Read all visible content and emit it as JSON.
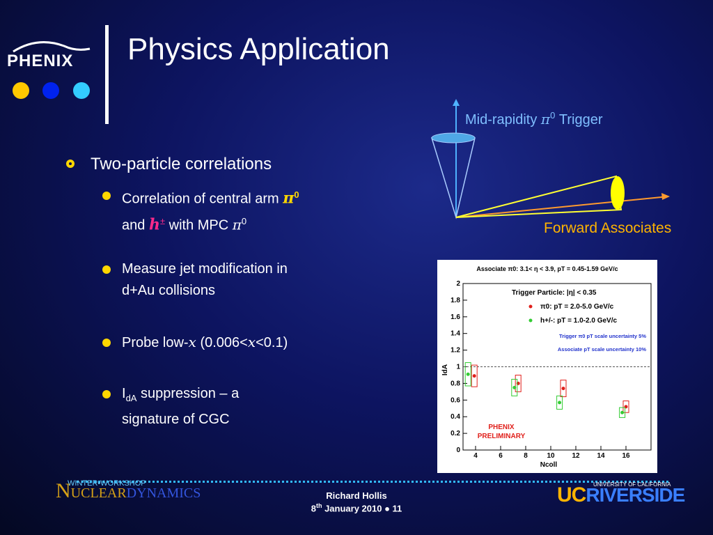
{
  "header": {
    "logo": "PHENIX",
    "title": "Physics Application"
  },
  "diagram": {
    "trigger_label": [
      "Mid-rapidity ",
      "π",
      "0",
      " Trigger"
    ],
    "associate_label": "Forward Associates"
  },
  "bullets": {
    "main": "Two-particle correlations",
    "sub": [
      [
        "Correlation of central arm ",
        "π",
        "0",
        "and ",
        "h",
        "±",
        " with MPC ",
        "π",
        "0"
      ],
      [
        "Measure jet modification in",
        "d+Au collisions"
      ],
      [
        "Probe low-",
        "x",
        " (0.006<",
        "x",
        "<0.1)"
      ],
      [
        "I",
        "dA",
        " suppression – a",
        "signature of CGC"
      ]
    ]
  },
  "footer": {
    "workshop": "WINTER•WORKSHOP",
    "conference_1": "N",
    "conference_2": "UCLEAR",
    "conference_3": "D",
    "conference_4": "YNAMICS",
    "author": "Richard Hollis",
    "date": [
      "8",
      "th",
      " January 2010 ● 11"
    ],
    "university": "UNIVERSITY OF CALIFORNIA",
    "uc": "UC",
    "campus": "RIVERSIDE"
  },
  "chart_data": {
    "type": "scatter",
    "title": "Associate π0: 3.1< η < 3.9, pT = 0.45-1.59 GeV/c",
    "xlabel": "Ncoll",
    "ylabel": "IdA",
    "xlim": [
      3,
      18
    ],
    "ylim": [
      0,
      2
    ],
    "xticks": [
      4,
      6,
      8,
      10,
      12,
      14,
      16
    ],
    "yticks": [
      0,
      0.2,
      0.4,
      0.6,
      0.8,
      1,
      1.2,
      1.4,
      1.6,
      1.8,
      2
    ],
    "reference_line": 1,
    "legend_title": "Trigger Particle: |η| < 0.35",
    "notes": [
      "Trigger π0 pT scale uncertainty 5%",
      "Associate pT scale uncertainty 10%"
    ],
    "annotation": [
      "PHENIX",
      "PRELIMINARY"
    ],
    "series": [
      {
        "name": "π0: pT = 2.0-5.0 GeV/c",
        "color": "#e0201b",
        "x": [
          3.9,
          7.4,
          11.0,
          16.0
        ],
        "values": [
          0.89,
          0.8,
          0.74,
          0.52
        ],
        "errors": [
          0.13,
          0.1,
          0.1,
          0.07
        ]
      },
      {
        "name": "h+/-: pT = 1.0-2.0 GeV/c",
        "color": "#33cc33",
        "x": [
          3.4,
          7.1,
          10.7,
          15.7
        ],
        "values": [
          0.91,
          0.75,
          0.57,
          0.45
        ],
        "errors": [
          0.14,
          0.1,
          0.08,
          0.06
        ]
      }
    ]
  }
}
